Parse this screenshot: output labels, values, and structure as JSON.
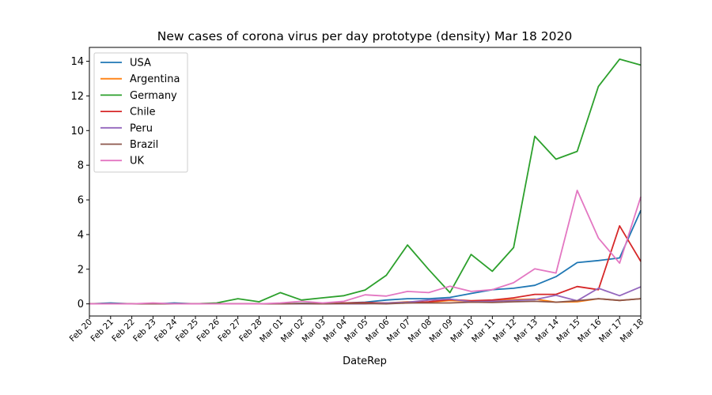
{
  "chart_data": {
    "type": "line",
    "title": "New cases of corona virus per day prototype (density)  Mar 18 2020",
    "xlabel": "DateRep",
    "ylabel": "",
    "categories": [
      "Feb 20",
      "Feb 21",
      "Feb 22",
      "Feb 23",
      "Feb 24",
      "Feb 25",
      "Feb 26",
      "Feb 27",
      "Feb 28",
      "Mar 01",
      "Mar 02",
      "Mar 03",
      "Mar 04",
      "Mar 05",
      "Mar 06",
      "Mar 07",
      "Mar 08",
      "Mar 09",
      "Mar 10",
      "Mar 11",
      "Mar 12",
      "Mar 13",
      "Mar 14",
      "Mar 15",
      "Mar 16",
      "Mar 17",
      "Mar 18"
    ],
    "yticks": [
      0,
      2,
      4,
      6,
      8,
      10,
      12,
      14
    ],
    "ylim": [
      -0.7,
      14.8
    ],
    "grid": false,
    "legend_position": "top-left",
    "series": [
      {
        "name": "USA",
        "color": "#1f77b4",
        "values": [
          0.0,
          0.05,
          0.0,
          0.0,
          0.05,
          0.0,
          0.0,
          0.0,
          0.0,
          0.0,
          0.03,
          0.02,
          0.05,
          0.1,
          0.22,
          0.3,
          0.3,
          0.37,
          0.6,
          0.82,
          0.9,
          1.07,
          1.57,
          2.38,
          2.5,
          2.65,
          5.4
        ]
      },
      {
        "name": "Argentina",
        "color": "#ff7f0e",
        "values": [
          0.0,
          0.0,
          0.0,
          0.0,
          0.0,
          0.0,
          0.0,
          0.0,
          0.0,
          0.0,
          0.0,
          0.03,
          0.02,
          0.02,
          0.05,
          0.12,
          0.1,
          0.2,
          0.15,
          0.18,
          0.25,
          0.28,
          0.1,
          0.12,
          0.3,
          0.2,
          0.3
        ]
      },
      {
        "name": "Germany",
        "color": "#2ca02c",
        "values": [
          0.0,
          0.0,
          0.0,
          0.0,
          0.0,
          0.0,
          0.05,
          0.3,
          0.12,
          0.65,
          0.22,
          0.35,
          0.47,
          0.8,
          1.65,
          3.4,
          1.98,
          0.65,
          2.85,
          1.88,
          3.25,
          9.67,
          8.35,
          8.8,
          12.55,
          14.12,
          13.78
        ]
      },
      {
        "name": "Chile",
        "color": "#d62728",
        "values": [
          0.0,
          0.0,
          0.0,
          0.0,
          0.0,
          0.0,
          0.0,
          0.0,
          0.0,
          0.0,
          0.0,
          0.0,
          0.05,
          0.07,
          0.05,
          0.05,
          0.12,
          0.25,
          0.18,
          0.22,
          0.35,
          0.55,
          0.55,
          1.0,
          0.82,
          4.5,
          2.45
        ]
      },
      {
        "name": "Peru",
        "color": "#9467bd",
        "values": [
          0.0,
          0.0,
          0.0,
          0.0,
          0.0,
          0.0,
          0.0,
          0.0,
          0.0,
          0.0,
          0.0,
          0.0,
          0.0,
          0.0,
          0.05,
          0.1,
          0.22,
          0.28,
          0.12,
          0.15,
          0.2,
          0.25,
          0.5,
          0.18,
          0.9,
          0.47,
          0.98
        ]
      },
      {
        "name": "Brazil",
        "color": "#8c564b",
        "values": [
          0.0,
          0.0,
          0.0,
          0.0,
          0.0,
          0.0,
          0.0,
          0.0,
          0.0,
          0.0,
          0.02,
          0.0,
          0.02,
          0.02,
          0.0,
          0.05,
          0.05,
          0.05,
          0.1,
          0.08,
          0.12,
          0.15,
          0.1,
          0.18,
          0.3,
          0.2,
          0.3
        ]
      },
      {
        "name": "UK",
        "color": "#e377c2",
        "values": [
          0.0,
          0.0,
          0.0,
          0.05,
          0.0,
          0.0,
          0.0,
          0.0,
          0.0,
          0.05,
          0.15,
          0.05,
          0.15,
          0.52,
          0.45,
          0.72,
          0.65,
          1.02,
          0.72,
          0.82,
          1.22,
          2.02,
          1.78,
          6.55,
          3.8,
          2.35,
          6.18
        ]
      }
    ]
  }
}
